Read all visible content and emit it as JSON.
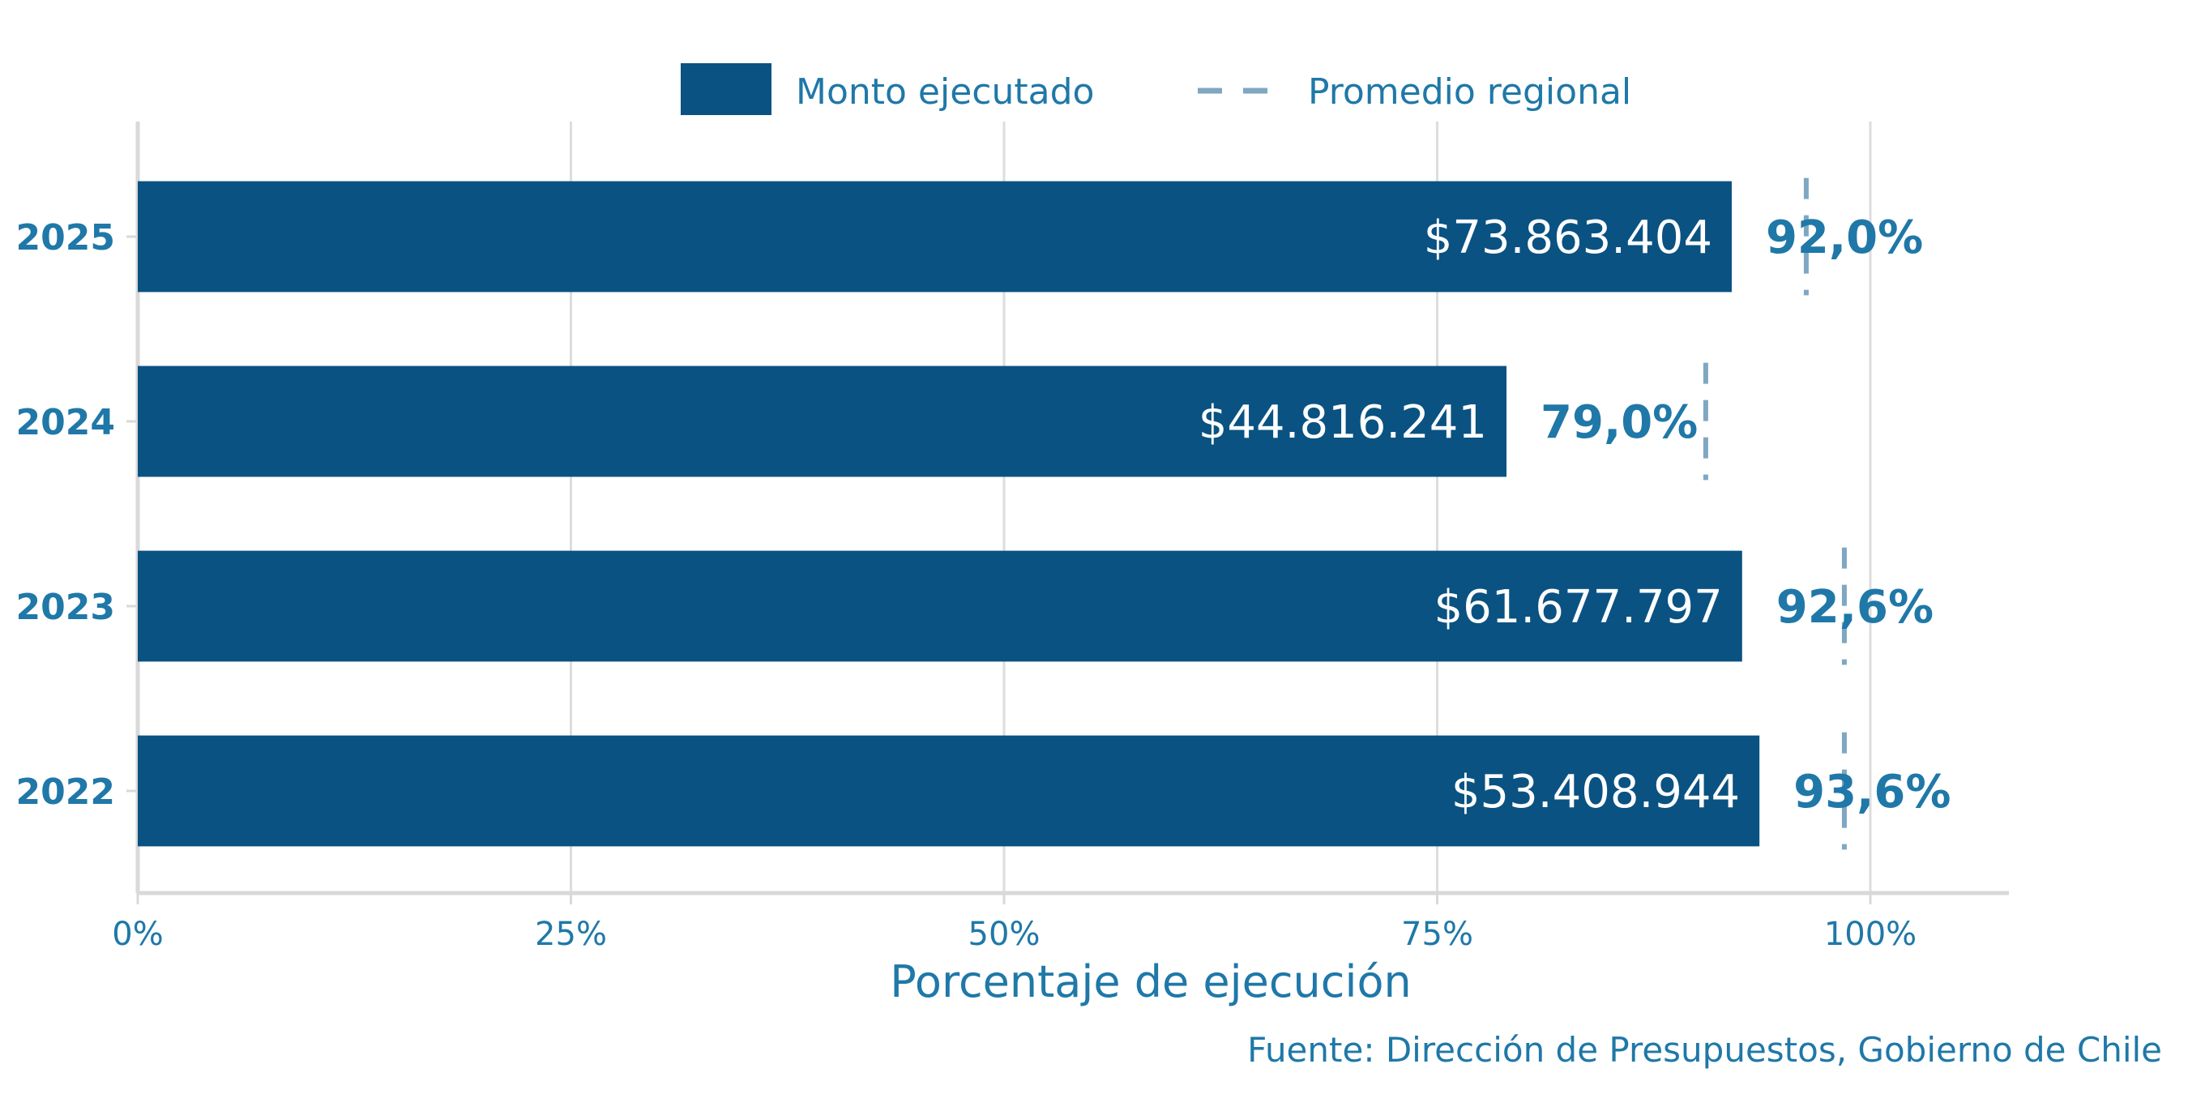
{
  "chart_data": {
    "type": "bar",
    "orientation": "horizontal",
    "categories": [
      "2025",
      "2024",
      "2023",
      "2022"
    ],
    "series": [
      {
        "name": "Monto ejecutado",
        "values": [
          92.0,
          79.0,
          92.6,
          93.6
        ],
        "amount_labels": [
          "$73.863.404",
          "$44.816.241",
          "$61.677.797",
          "$53.408.944"
        ],
        "percent_labels": [
          "92,0%",
          "79,0%",
          "92,6%",
          "93,6%"
        ]
      },
      {
        "name": "Promedio regional",
        "style": "dashed",
        "values": [
          96.3,
          90.5,
          98.5,
          98.5
        ]
      }
    ],
    "xlabel": "Porcentaje de ejecución",
    "ylabel": "",
    "xlim": [
      0,
      108
    ],
    "x_ticks": [
      0,
      25,
      50,
      75,
      100
    ],
    "x_tick_labels": [
      "0%",
      "25%",
      "50%",
      "75%",
      "100%"
    ],
    "legend": {
      "placement": "top-center",
      "entries": [
        "Monto ejecutado",
        "Promedio regional"
      ]
    },
    "grid": true,
    "caption": "Fuente: Dirección de Presupuestos, Gobierno de Chile"
  },
  "colors": {
    "bar": "#0a5282",
    "average_line": "#7fa7c2",
    "text": "#1f78a8",
    "grid": "#dddddd",
    "axis": "#d9d9d9"
  }
}
